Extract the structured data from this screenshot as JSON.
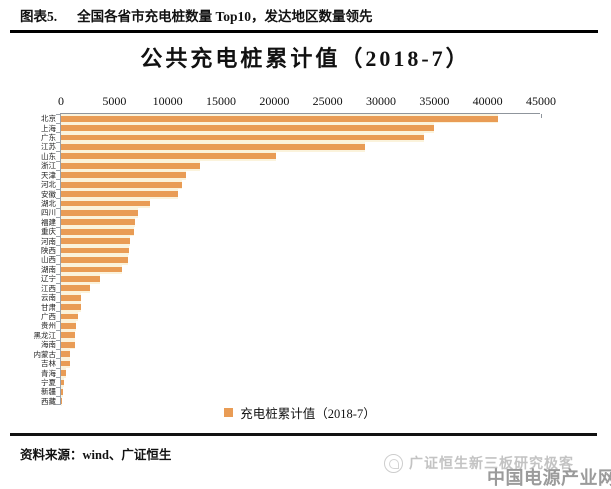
{
  "figure_header": {
    "label": "图表5.",
    "title": "全国各省市充电桩数量 Top10，发达地区数量领先"
  },
  "chart_data": {
    "type": "bar",
    "orientation": "horizontal",
    "title": "公共充电桩累计值（2018-7）",
    "legend": "充电桩累计值（2018-7）",
    "legend_position": "bottom",
    "bar_color": "#e99c55",
    "xlim": [
      0,
      45000
    ],
    "x_ticks": [
      0,
      5000,
      10000,
      15000,
      20000,
      25000,
      30000,
      35000,
      40000,
      45000
    ],
    "categories": [
      "北京",
      "上海",
      "广东",
      "江苏",
      "山东",
      "浙江",
      "天津",
      "河北",
      "安徽",
      "湖北",
      "四川",
      "福建",
      "重庆",
      "河南",
      "陕西",
      "山西",
      "湖南",
      "辽宁",
      "江西",
      "云南",
      "甘肃",
      "广西",
      "贵州",
      "黑龙江",
      "海南",
      "内蒙古",
      "吉林",
      "青海",
      "宁夏",
      "新疆",
      "西藏"
    ],
    "values": [
      41000,
      35000,
      34000,
      28500,
      20200,
      13000,
      11700,
      11300,
      11000,
      8300,
      7200,
      6900,
      6800,
      6500,
      6400,
      6300,
      5700,
      3700,
      2700,
      1900,
      1850,
      1600,
      1400,
      1350,
      1300,
      850,
      800,
      500,
      250,
      200,
      80
    ]
  },
  "footer": {
    "source_label": "资料来源：wind、广证恒生"
  },
  "watermarks": {
    "account": "广证恒生新三板研究极客",
    "site": "中国电源产业网"
  }
}
